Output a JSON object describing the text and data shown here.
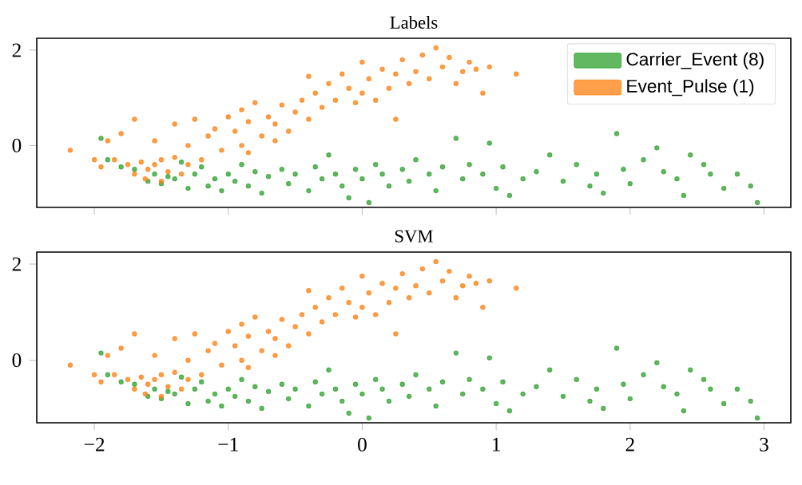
{
  "chart_data": [
    {
      "type": "scatter",
      "title": "Labels",
      "legend": "top right",
      "tick_labels": "y",
      "xlim": [
        -2.43,
        3.2
      ],
      "ylim": [
        -1.3,
        2.25
      ],
      "xticks": [
        -2,
        -1,
        0,
        1,
        2,
        3
      ],
      "yticks": [
        0,
        2
      ],
      "series": [
        {
          "name": "Carrier_Event (8)",
          "color": "#2ca02c",
          "x": [
            -1.95,
            -1.9,
            -1.8,
            -1.7,
            -1.6,
            -1.55,
            -1.5,
            -1.45,
            -1.4,
            -1.35,
            -1.3,
            -1.25,
            -1.2,
            -1.15,
            -1.1,
            -1.05,
            -1.0,
            -0.95,
            -0.9,
            -0.85,
            -0.8,
            -0.75,
            -0.7,
            -0.6,
            -0.55,
            -0.5,
            -0.4,
            -0.35,
            -0.3,
            -0.25,
            -0.2,
            -0.15,
            -0.1,
            -0.05,
            0.0,
            0.05,
            0.1,
            0.15,
            0.2,
            0.3,
            0.35,
            0.4,
            0.5,
            0.55,
            0.6,
            0.7,
            0.75,
            0.8,
            0.9,
            0.95,
            1.0,
            1.05,
            1.1,
            1.2,
            1.3,
            1.4,
            1.5,
            1.6,
            1.7,
            1.75,
            1.8,
            1.9,
            1.95,
            2.0,
            2.1,
            2.2,
            2.25,
            2.35,
            2.4,
            2.45,
            2.55,
            2.6,
            2.7,
            2.8,
            2.9,
            2.95
          ],
          "values": [
            0.15,
            -0.3,
            -0.45,
            -0.5,
            -0.75,
            -0.6,
            -0.8,
            -0.65,
            -0.7,
            -0.35,
            -0.9,
            -0.6,
            -0.45,
            -0.85,
            -0.7,
            -0.95,
            -0.6,
            -0.75,
            -0.4,
            -0.85,
            -0.55,
            -1.0,
            -0.65,
            -0.5,
            -0.8,
            -0.6,
            -0.95,
            -0.45,
            -0.7,
            -0.2,
            -0.6,
            -0.85,
            -1.1,
            -0.5,
            -0.7,
            -1.2,
            -0.4,
            -0.6,
            -0.85,
            -0.5,
            -0.75,
            -0.3,
            -0.6,
            -0.95,
            -0.45,
            0.15,
            -0.7,
            -0.4,
            -0.6,
            0.05,
            -0.9,
            -0.45,
            -1.05,
            -0.7,
            -0.55,
            -0.2,
            -0.75,
            -0.4,
            -0.85,
            -0.6,
            -1.0,
            0.25,
            -0.5,
            -0.8,
            -0.3,
            -0.05,
            -0.55,
            -0.7,
            -1.05,
            -0.2,
            -0.4,
            -0.6,
            -0.9,
            -0.6,
            -0.85,
            -1.2
          ]
        },
        {
          "name": "Event_Pulse (1)",
          "color": "#ff7f0e",
          "x": [
            -2.18,
            -2.0,
            -1.95,
            -1.9,
            -1.85,
            -1.8,
            -1.75,
            -1.7,
            -1.7,
            -1.65,
            -1.62,
            -1.6,
            -1.55,
            -1.55,
            -1.5,
            -1.5,
            -1.45,
            -1.4,
            -1.4,
            -1.35,
            -1.3,
            -1.3,
            -1.25,
            -1.2,
            -1.15,
            -1.1,
            -1.05,
            -1.0,
            -0.95,
            -0.9,
            -0.9,
            -0.85,
            -0.8,
            -0.75,
            -0.7,
            -0.65,
            -0.6,
            -0.55,
            -0.5,
            -0.45,
            -0.4,
            -0.4,
            -0.35,
            -0.3,
            -0.25,
            -0.2,
            -0.15,
            -0.1,
            -0.05,
            0.0,
            0.0,
            0.05,
            0.1,
            0.15,
            0.2,
            0.25,
            0.25,
            0.3,
            0.35,
            0.4,
            0.45,
            0.5,
            0.55,
            0.6,
            0.65,
            0.7,
            0.75,
            0.8,
            0.85,
            0.9,
            0.95,
            1.15,
            -0.85,
            -0.65
          ],
          "values": [
            -0.1,
            -0.3,
            -0.45,
            0.1,
            -0.3,
            0.25,
            -0.4,
            0.55,
            -0.6,
            -0.35,
            -0.7,
            -0.5,
            -0.4,
            0.1,
            -0.75,
            -0.3,
            -0.55,
            0.45,
            -0.25,
            -0.6,
            0.0,
            -0.4,
            0.55,
            -0.3,
            0.2,
            0.35,
            -0.1,
            0.6,
            0.3,
            0.0,
            0.75,
            0.5,
            0.9,
            0.2,
            0.6,
            0.45,
            0.85,
            0.3,
            0.7,
            0.95,
            0.55,
            1.45,
            1.1,
            0.8,
            1.3,
            0.95,
            1.5,
            1.2,
            0.9,
            1.75,
            1.1,
            1.4,
            0.95,
            1.6,
            1.2,
            0.55,
            1.5,
            1.8,
            1.3,
            1.55,
            1.9,
            1.4,
            2.05,
            1.65,
            1.85,
            1.3,
            1.55,
            1.75,
            1.6,
            1.1,
            1.65,
            1.5,
            -0.15,
            0.1
          ]
        }
      ]
    },
    {
      "type": "scatter",
      "title": "SVM",
      "xlim": [
        -2.43,
        3.2
      ],
      "ylim": [
        -1.3,
        2.25
      ],
      "xticks": [
        {
          "value": -2,
          "label": "−2"
        },
        {
          "value": -1,
          "label": "−1"
        },
        0,
        1,
        2,
        3
      ],
      "yticks": [
        0,
        2
      ],
      "series": [
        {
          "color": "#2ca02c",
          "x": [
            -1.95,
            -1.9,
            -1.8,
            -1.7,
            -1.6,
            -1.55,
            -1.5,
            -1.45,
            -1.4,
            -1.35,
            -1.3,
            -1.25,
            -1.2,
            -1.15,
            -1.1,
            -1.05,
            -1.0,
            -0.95,
            -0.9,
            -0.85,
            -0.8,
            -0.75,
            -0.7,
            -0.6,
            -0.55,
            -0.5,
            -0.4,
            -0.35,
            -0.3,
            -0.25,
            -0.2,
            -0.15,
            -0.1,
            -0.05,
            0.0,
            0.05,
            0.1,
            0.15,
            0.2,
            0.3,
            0.35,
            0.4,
            0.5,
            0.55,
            0.6,
            0.7,
            0.75,
            0.8,
            0.9,
            0.95,
            1.0,
            1.05,
            1.1,
            1.2,
            1.3,
            1.4,
            1.5,
            1.6,
            1.7,
            1.75,
            1.8,
            1.9,
            1.95,
            2.0,
            2.1,
            2.2,
            2.25,
            2.35,
            2.4,
            2.45,
            2.55,
            2.6,
            2.7,
            2.8,
            2.9,
            2.95
          ],
          "values": [
            0.15,
            -0.3,
            -0.45,
            -0.5,
            -0.75,
            -0.6,
            -0.8,
            -0.65,
            -0.7,
            -0.35,
            -0.9,
            -0.6,
            -0.45,
            -0.85,
            -0.7,
            -0.95,
            -0.6,
            -0.75,
            -0.4,
            -0.85,
            -0.55,
            -1.0,
            -0.65,
            -0.5,
            -0.8,
            -0.6,
            -0.95,
            -0.45,
            -0.7,
            -0.2,
            -0.6,
            -0.85,
            -1.1,
            -0.5,
            -0.7,
            -1.2,
            -0.4,
            -0.6,
            -0.85,
            -0.5,
            -0.75,
            -0.3,
            -0.6,
            -0.95,
            -0.45,
            0.15,
            -0.7,
            -0.4,
            -0.6,
            0.05,
            -0.9,
            -0.45,
            -1.05,
            -0.7,
            -0.55,
            -0.2,
            -0.75,
            -0.4,
            -0.85,
            -0.6,
            -1.0,
            0.25,
            -0.5,
            -0.8,
            -0.3,
            -0.05,
            -0.55,
            -0.7,
            -1.05,
            -0.2,
            -0.4,
            -0.6,
            -0.9,
            -0.6,
            -0.85,
            -1.2
          ]
        },
        {
          "color": "#ff7f0e",
          "x": [
            -2.18,
            -2.0,
            -1.95,
            -1.9,
            -1.85,
            -1.8,
            -1.75,
            -1.7,
            -1.7,
            -1.65,
            -1.62,
            -1.6,
            -1.55,
            -1.55,
            -1.5,
            -1.5,
            -1.45,
            -1.4,
            -1.4,
            -1.35,
            -1.3,
            -1.3,
            -1.25,
            -1.2,
            -1.15,
            -1.1,
            -1.05,
            -1.0,
            -0.95,
            -0.9,
            -0.9,
            -0.85,
            -0.8,
            -0.75,
            -0.7,
            -0.65,
            -0.6,
            -0.55,
            -0.5,
            -0.45,
            -0.4,
            -0.4,
            -0.35,
            -0.3,
            -0.25,
            -0.2,
            -0.15,
            -0.1,
            -0.05,
            0.0,
            0.0,
            0.05,
            0.1,
            0.15,
            0.2,
            0.25,
            0.25,
            0.3,
            0.35,
            0.4,
            0.45,
            0.5,
            0.55,
            0.6,
            0.65,
            0.7,
            0.75,
            0.8,
            0.85,
            0.9,
            0.95,
            1.15,
            -0.85,
            -0.65
          ],
          "values": [
            -0.1,
            -0.3,
            -0.45,
            0.1,
            -0.3,
            0.25,
            -0.4,
            0.55,
            -0.6,
            -0.35,
            -0.7,
            -0.5,
            -0.4,
            0.1,
            -0.75,
            -0.3,
            -0.55,
            0.45,
            -0.25,
            -0.6,
            0.0,
            -0.4,
            0.55,
            -0.3,
            0.2,
            0.35,
            -0.1,
            0.6,
            0.3,
            0.0,
            0.75,
            0.5,
            0.9,
            0.2,
            0.6,
            0.45,
            0.85,
            0.3,
            0.7,
            0.95,
            0.55,
            1.45,
            1.1,
            0.8,
            1.3,
            0.95,
            1.5,
            1.2,
            0.9,
            1.75,
            1.1,
            1.4,
            0.95,
            1.6,
            1.2,
            0.55,
            1.5,
            1.8,
            1.3,
            1.55,
            1.9,
            1.4,
            2.05,
            1.65,
            1.85,
            1.3,
            1.55,
            1.75,
            1.6,
            1.1,
            1.65,
            1.5,
            -0.15,
            0.1
          ]
        }
      ]
    }
  ]
}
